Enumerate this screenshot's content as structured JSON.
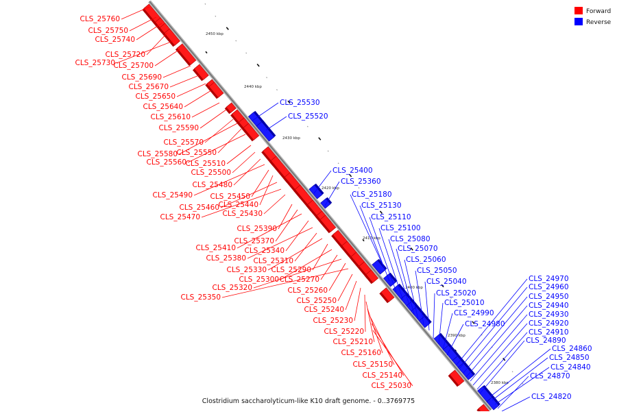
{
  "legend": {
    "forward": {
      "label": "Forward",
      "color": "#ff0000"
    },
    "reverse": {
      "label": "Reverse",
      "color": "#0000ff"
    }
  },
  "caption": "Clostridium saccharolyticum-like K10 draft genome. - 0..3769775",
  "ticks": [
    "2450 kbp",
    "2440 kbp",
    "2430 kbp",
    "2420 kbp",
    "2410 kbp",
    "2400 kbp",
    "2390 kbp",
    "2380 kbp"
  ],
  "forward_genes": [
    "CLS_25760",
    "CLS_25750",
    "CLS_25740",
    "CLS_25720",
    "CLS_25730",
    "CLS_25700",
    "CLS_25690",
    "CLS_25670",
    "CLS_25650",
    "CLS_25640",
    "CLS_25610",
    "CLS_25590",
    "CLS_25570",
    "CLS_25580",
    "CLS_25550",
    "CLS_25560",
    "CLS_25510",
    "CLS_25500",
    "CLS_25480",
    "CLS_25490",
    "CLS_25450",
    "CLS_25440",
    "CLS_25460",
    "CLS_25470",
    "CLS_25430",
    "CLS_25390",
    "CLS_25370",
    "CLS_25410",
    "CLS_25340",
    "CLS_25380",
    "CLS_25310",
    "CLS_25330",
    "CLS_25290",
    "CLS_25300",
    "CLS_25270",
    "CLS_25320",
    "CLS_25260",
    "CLS_25350",
    "CLS_25250",
    "CLS_25240",
    "CLS_25230",
    "CLS_25220",
    "CLS_25210",
    "CLS_25160",
    "CLS_25150",
    "CLS_25140",
    "CLS_25030"
  ],
  "reverse_genes": [
    "CLS_25530",
    "CLS_25520",
    "CLS_25400",
    "CLS_25360",
    "CLS_25180",
    "CLS_25130",
    "CLS_25110",
    "CLS_25100",
    "CLS_25080",
    "CLS_25070",
    "CLS_25060",
    "CLS_25050",
    "CLS_25040",
    "CLS_25020",
    "CLS_25010",
    "CLS_24990",
    "CLS_24980",
    "CLS_24970",
    "CLS_24960",
    "CLS_24950",
    "CLS_24940",
    "CLS_24930",
    "CLS_24920",
    "CLS_24910",
    "CLS_24890",
    "CLS_24860",
    "CLS_24850",
    "CLS_24840",
    "CLS_24870",
    "CLS_24820"
  ]
}
